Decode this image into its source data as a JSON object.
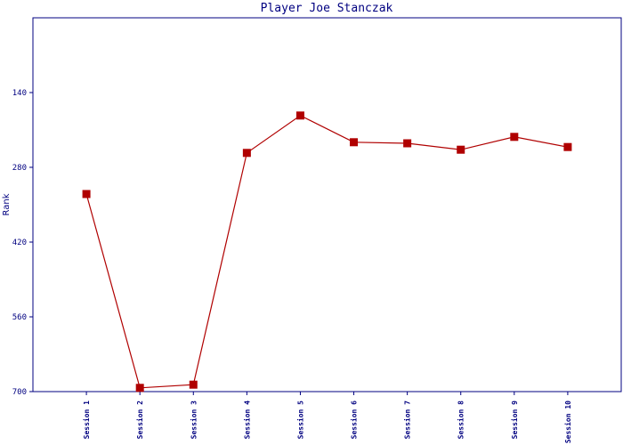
{
  "chart_data": {
    "type": "line",
    "title": "Player Joe Stanczak",
    "ylabel": "Rank",
    "categories": [
      "Session 1",
      "Session 2",
      "Session 3",
      "Session 4",
      "Session 5",
      "Session 6",
      "Session 7",
      "Session 8",
      "Session 9",
      "Session 10"
    ],
    "series": [
      {
        "name": "Rank",
        "color": "#b00000",
        "values": [
          330,
          693,
          687,
          253,
          183,
          233,
          235,
          247,
          223,
          242
        ]
      }
    ],
    "ylim": [
      0,
      700
    ],
    "yticks": [
      140,
      280,
      420,
      560,
      700
    ],
    "y_inverted": true,
    "grid": false,
    "axis_color": "#000080"
  }
}
